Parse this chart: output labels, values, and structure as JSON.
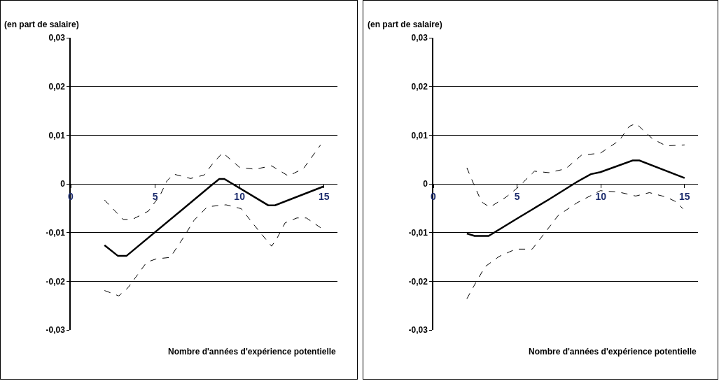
{
  "chart_data": [
    {
      "type": "line",
      "ylabel": "(en part de salaire)",
      "xlabel": "Nombre d'années d'expérience potentielle",
      "xlim": [
        0,
        15.8
      ],
      "xticks": [
        0,
        5,
        10,
        15
      ],
      "ylim": [
        -0.03,
        0.03
      ],
      "yticks": [
        {
          "value": 0.03,
          "label": "0,03"
        },
        {
          "value": 0.02,
          "label": "0,02"
        },
        {
          "value": 0.01,
          "label": "0,01"
        },
        {
          "value": 0,
          "label": "0"
        },
        {
          "value": -0.01,
          "label": "-0,01"
        },
        {
          "value": -0.02,
          "label": "-0,02"
        },
        {
          "value": -0.03,
          "label": "-0,03"
        }
      ],
      "grid": "y",
      "marker": "none",
      "series": [
        {
          "color": "#000000",
          "line_style": "solid",
          "x": [
            2,
            2.8,
            3.3,
            8.3,
            8.8,
            9.1,
            11.7,
            12.1,
            15
          ],
          "values": [
            -0.0126,
            -0.0148,
            -0.0148,
            -0.0004,
            0.001,
            0.001,
            -0.0044,
            -0.0044,
            -0.0005
          ]
        },
        {
          "color": "#000000",
          "line_style": "dashed",
          "x": [
            2,
            3.1,
            3.65,
            4.6,
            5.3,
            5.7,
            6.1,
            7.1,
            7.9,
            8.4,
            9,
            10,
            10.9,
            11.9,
            12.9,
            13.8,
            14.8
          ],
          "values": [
            -0.0033,
            -0.0073,
            -0.0073,
            -0.0056,
            -0.0023,
            0.0006,
            0.002,
            0.0011,
            0.0018,
            0.0041,
            0.0064,
            0.0034,
            0.003,
            0.0037,
            0.0016,
            0.0032,
            0.008
          ]
        },
        {
          "color": "#000000",
          "line_style": "dashed",
          "x": [
            2,
            2.85,
            3.4,
            4.5,
            5.07,
            5.9,
            6.7,
            7.3,
            8.1,
            9.2,
            10.1,
            11.2,
            11.9,
            12.2,
            12.7,
            13.4,
            13.96,
            14.8
          ],
          "values": [
            -0.0219,
            -0.023,
            -0.0213,
            -0.0161,
            -0.0154,
            -0.0151,
            -0.0109,
            -0.0075,
            -0.0047,
            -0.0043,
            -0.0051,
            -0.0099,
            -0.0128,
            -0.0113,
            -0.008,
            -0.007,
            -0.007,
            -0.009
          ]
        }
      ]
    },
    {
      "type": "line",
      "ylabel": "(en part de salaire)",
      "xlabel": "Nombre d'années d'expérience potentielle",
      "xlim": [
        0,
        15.8
      ],
      "xticks": [
        0,
        5,
        10,
        15
      ],
      "ylim": [
        -0.03,
        0.03
      ],
      "yticks": [
        {
          "value": 0.03,
          "label": "0,03"
        },
        {
          "value": 0.02,
          "label": "0,02"
        },
        {
          "value": 0.01,
          "label": "0,01"
        },
        {
          "value": 0,
          "label": "0"
        },
        {
          "value": -0.01,
          "label": "-0,01"
        },
        {
          "value": -0.02,
          "label": "-0,02"
        },
        {
          "value": -0.03,
          "label": "-0,03"
        }
      ],
      "grid": "y",
      "marker": "none",
      "series": [
        {
          "color": "#000000",
          "line_style": "solid",
          "x": [
            2,
            2.46,
            3.3,
            5.06,
            6.9,
            8.57,
            9.4,
            9.97,
            11.9,
            12.3,
            15
          ],
          "values": [
            -0.0102,
            -0.0107,
            -0.0107,
            -0.007,
            -0.0032,
            0.0004,
            0.002,
            0.0024,
            0.0048,
            0.0048,
            0.0012
          ]
        },
        {
          "color": "#000000",
          "line_style": "dashed",
          "x": [
            2,
            2.39,
            2.88,
            3.37,
            4.35,
            5.06,
            6.04,
            6.9,
            7.9,
            8.85,
            9.97,
            11.1,
            11.7,
            12.1,
            13.1,
            13.9,
            15
          ],
          "values": [
            0.0033,
            0.0001,
            -0.0037,
            -0.0048,
            -0.0027,
            -0.0007,
            0.0026,
            0.0023,
            0.0031,
            0.0059,
            0.0063,
            0.0089,
            0.0118,
            0.0124,
            0.0092,
            0.0078,
            0.008
          ]
        },
        {
          "color": "#000000",
          "line_style": "dashed",
          "x": [
            2,
            2.53,
            3.09,
            3.93,
            4.92,
            5.9,
            6.6,
            7.45,
            8.57,
            9.97,
            11.1,
            12.08,
            12.9,
            13.9,
            14.5,
            14.9
          ],
          "values": [
            -0.0236,
            -0.0203,
            -0.017,
            -0.0149,
            -0.0134,
            -0.0134,
            -0.0103,
            -0.0065,
            -0.0039,
            -0.0014,
            -0.0017,
            -0.0025,
            -0.0018,
            -0.0027,
            -0.0037,
            -0.0051
          ]
        }
      ]
    }
  ]
}
